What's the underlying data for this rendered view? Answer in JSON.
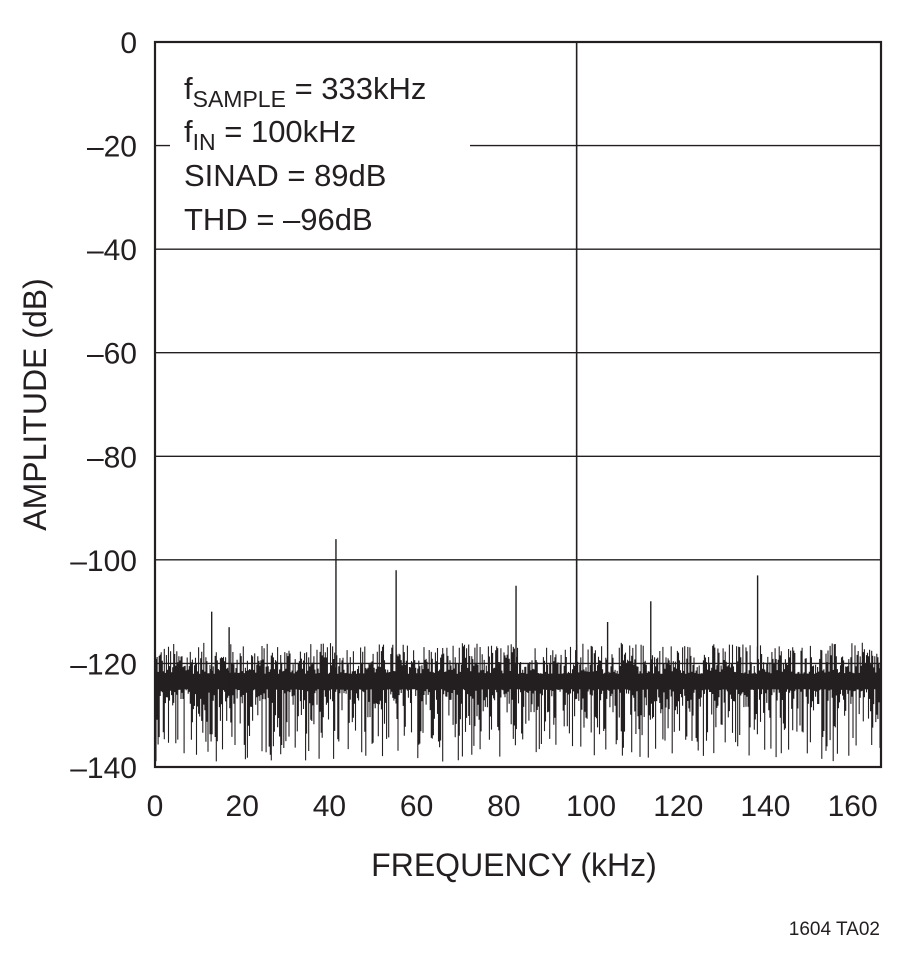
{
  "chart_data": {
    "type": "line",
    "xlabel": "FREQUENCY (kHz)",
    "ylabel": "AMPLITUDE (dB)",
    "xlim": [
      0,
      166.5
    ],
    "ylim": [
      -140,
      0
    ],
    "x_ticks": [
      "0",
      "20",
      "40",
      "60",
      "80",
      "100",
      "120",
      "140",
      "160"
    ],
    "y_ticks": [
      "0",
      "–20",
      "–40",
      "–60",
      "–80",
      "–100",
      "–120",
      "–140"
    ],
    "grid": true,
    "annotations": {
      "fsample_f": "f",
      "fsample_sub": "SAMPLE",
      "fsample_val": " = 333kHz",
      "fin_f": "f",
      "fin_sub": "IN",
      "fin_val": " = 100kHz",
      "sinad": "SINAD = 89dB",
      "thd": "THD = –96dB"
    },
    "figure_id": "1604 TA02",
    "fundamental": {
      "x": 96.7,
      "y": 0
    },
    "spurs": [
      {
        "x": 41.5,
        "y": -96
      },
      {
        "x": 55.3,
        "y": -102
      },
      {
        "x": 82.8,
        "y": -105
      },
      {
        "x": 103.8,
        "y": -112
      },
      {
        "x": 113.7,
        "y": -108
      },
      {
        "x": 138.2,
        "y": -103
      },
      {
        "x": 13.0,
        "y": -110
      },
      {
        "x": 17.0,
        "y": -113
      }
    ],
    "noise_floor": {
      "x_start": 0,
      "x_end": 166.5,
      "median": -124,
      "upper": -116,
      "lower": -139
    }
  }
}
